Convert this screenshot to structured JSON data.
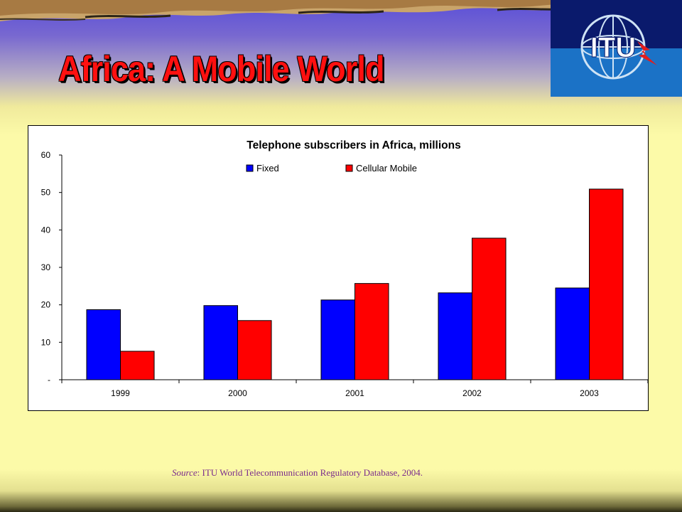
{
  "slide": {
    "title": "Africa:  A Mobile World",
    "logo_text": "ITU",
    "source_label": "Source",
    "source_text": ": ITU World Telecommunication Regulatory Database, 2004."
  },
  "colors": {
    "fixed": "#0000ff",
    "mobile": "#ff0000",
    "title": "#ff1010"
  },
  "chart_data": {
    "type": "bar",
    "title": "Telephone subscribers in Africa, millions",
    "categories": [
      "1999",
      "2000",
      "2001",
      "2002",
      "2003"
    ],
    "series": [
      {
        "name": "Fixed",
        "color": "#0000ff",
        "values": [
          18.7,
          19.8,
          21.3,
          23.2,
          24.5
        ]
      },
      {
        "name": "Cellular Mobile",
        "color": "#ff0000",
        "values": [
          7.6,
          15.8,
          25.7,
          37.8,
          50.9
        ]
      }
    ],
    "yticks": [
      "-",
      "10",
      "20",
      "30",
      "40",
      "50",
      "60"
    ],
    "ylim": [
      0,
      60
    ],
    "grid": false,
    "legend_position": "top"
  }
}
